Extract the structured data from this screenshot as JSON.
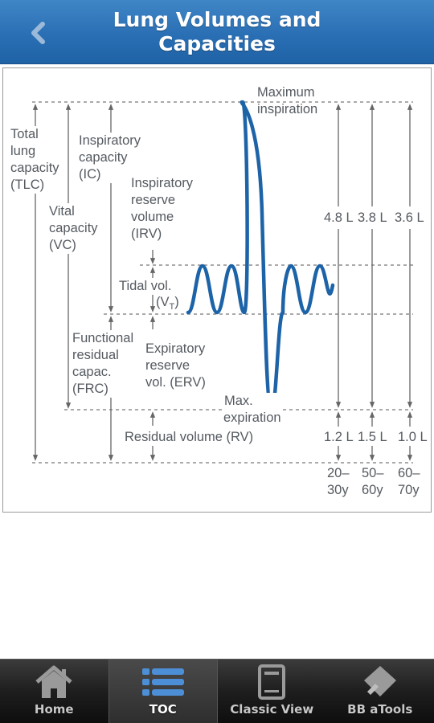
{
  "header": {
    "back_icon": "chevron-left-icon",
    "title_line1": "Lung Volumes and",
    "title_line2": "Capacities"
  },
  "diagram": {
    "labels": {
      "max_inspiration": [
        "Maximum",
        "inspiration"
      ],
      "tlc": [
        "Total",
        "lung",
        "capacity",
        "(TLC)"
      ],
      "ic": [
        "Inspiratory",
        "capacity",
        "(IC)"
      ],
      "irv": [
        "Inspiratory",
        "reserve",
        "volume",
        "(IRV)"
      ],
      "vc": [
        "Vital",
        "capacity",
        "(VC)"
      ],
      "tidal": "Tidal vol.",
      "vt_main": "V",
      "vt_sub": "T",
      "frc": [
        "Functional",
        "residual",
        "capac.",
        "(FRC)"
      ],
      "erv": [
        "Expiratory",
        "reserve",
        "vol. (ERV)"
      ],
      "max_expiration": [
        "Max.",
        "expiration"
      ],
      "rv": "Residual volume (RV)"
    },
    "age_columns": [
      {
        "vc": "4.8 L",
        "rv": "1.2 L",
        "age_top": "20–",
        "age_bottom": "30y"
      },
      {
        "vc": "3.8 L",
        "rv": "1.5 L",
        "age_top": "50–",
        "age_bottom": "60y"
      },
      {
        "vc": "3.6 L",
        "rv": "1.0 L",
        "age_top": "60–",
        "age_bottom": "70y"
      }
    ],
    "wave_color": "#1d63a8",
    "line_color": "#666666"
  },
  "tabs": [
    {
      "label": "Home",
      "icon": "home-icon",
      "active": false
    },
    {
      "label": "TOC",
      "icon": "list-icon",
      "active": true
    },
    {
      "label": "Classic View",
      "icon": "document-icon",
      "active": false
    },
    {
      "label": "BB aTools",
      "icon": "tools-icon",
      "active": false
    }
  ]
}
